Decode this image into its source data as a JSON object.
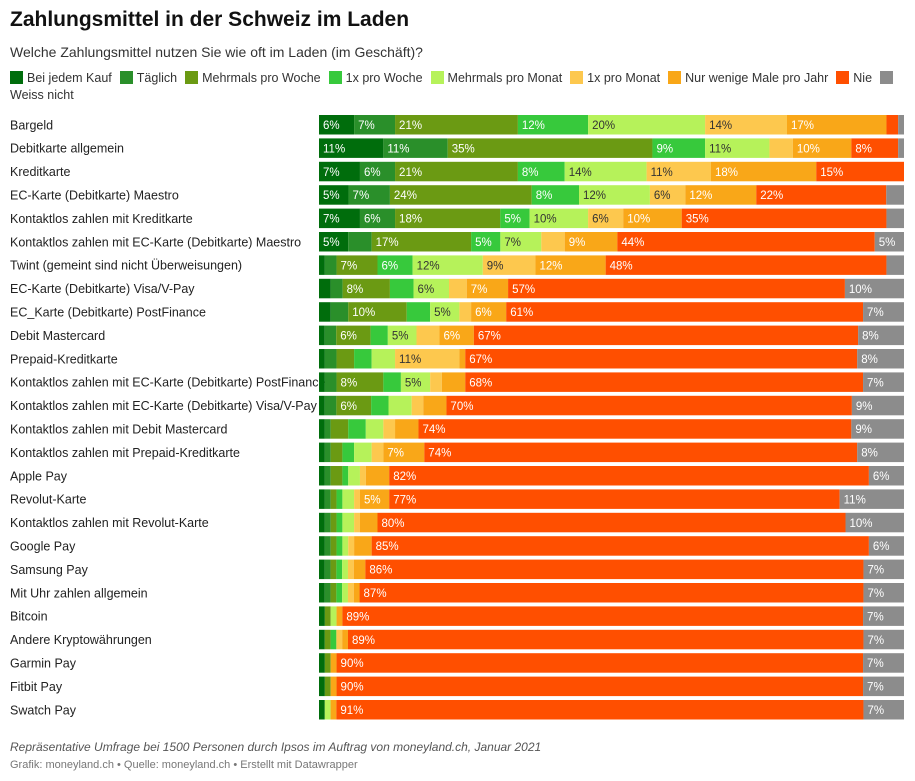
{
  "title": "Zahlungsmittel in der Schweiz im Laden",
  "subtitle": "Welche Zahlungsmittel nutzen Sie wie oft im Laden (im Geschäft)?",
  "notes": "Repräsentative Umfrage bei 1500 Personen durch Ipsos im Auftrag von moneyland.ch, Januar 2021",
  "footer": "Grafik: moneyland.ch • Quelle: moneyland.ch • Erstellt mit Datawrapper",
  "chart_data": {
    "type": "bar",
    "orientation": "horizontal",
    "stacked": true,
    "normalized_percent": true,
    "legend_position": "top",
    "series": [
      {
        "name": "Bei jedem Kauf",
        "color": "#006d0c"
      },
      {
        "name": "Täglich",
        "color": "#2a8f2a"
      },
      {
        "name": "Mehrmals pro Woche",
        "color": "#6b9a13"
      },
      {
        "name": "1x pro Woche",
        "color": "#37c93c"
      },
      {
        "name": "Mehrmals pro Monat",
        "color": "#b6f25a"
      },
      {
        "name": "1x pro Monat",
        "color": "#fdc84e"
      },
      {
        "name": "Nur wenige Male pro Jahr",
        "color": "#f9a718"
      },
      {
        "name": "Nie",
        "color": "#ff4f00"
      },
      {
        "name": "Weiss nicht",
        "color": "#8c8c8c"
      }
    ],
    "categories": [
      "Bargeld",
      "Debitkarte allgemein",
      "Kreditkarte",
      "EC-Karte (Debitkarte) Maestro",
      "Kontaktlos zahlen mit Kreditkarte",
      "Kontaktlos zahlen mit EC-Karte (Debitkarte) Maestro",
      "Twint (gemeint sind nicht Überweisungen)",
      "EC-Karte (Debitkarte) Visa/V-Pay",
      "EC_Karte (Debitkarte) PostFinance",
      "Debit Mastercard",
      "Prepaid-Kreditkarte",
      "Kontaktlos zahlen mit EC-Karte (Debitkarte) PostFinance",
      "Kontaktlos zahlen mit EC-Karte (Debitkarte) Visa/V-Pay",
      "Kontaktlos zahlen mit Debit Mastercard",
      "Kontaktlos zahlen mit Prepaid-Kreditkarte",
      "Apple Pay",
      "Revolut-Karte",
      "Kontaktlos zahlen mit Revolut-Karte",
      "Google Pay",
      "Samsung Pay",
      "Mit Uhr zahlen allgemein",
      "Bitcoin",
      "Andere Kryptowährungen",
      "Garmin Pay",
      "Fitbit Pay",
      "Swatch Pay"
    ],
    "values": [
      [
        6,
        7,
        21,
        12,
        20,
        14,
        17,
        2,
        1
      ],
      [
        11,
        11,
        35,
        9,
        11,
        4,
        10,
        8,
        1
      ],
      [
        7,
        6,
        21,
        8,
        14,
        11,
        18,
        15,
        0
      ],
      [
        5,
        7,
        24,
        8,
        12,
        6,
        12,
        22,
        3
      ],
      [
        7,
        6,
        18,
        5,
        10,
        6,
        10,
        35,
        3
      ],
      [
        5,
        4,
        17,
        5,
        7,
        4,
        9,
        44,
        5
      ],
      [
        1,
        2,
        7,
        6,
        12,
        9,
        12,
        48,
        3
      ],
      [
        2,
        2,
        8,
        4,
        6,
        3,
        7,
        57,
        10
      ],
      [
        2,
        3,
        10,
        4,
        5,
        2,
        6,
        61,
        7
      ],
      [
        1,
        2,
        6,
        3,
        5,
        4,
        6,
        67,
        8
      ],
      [
        1,
        2,
        3,
        3,
        4,
        11,
        1,
        67,
        8
      ],
      [
        1,
        2,
        8,
        3,
        5,
        2,
        4,
        68,
        7
      ],
      [
        1,
        2,
        6,
        3,
        4,
        2,
        4,
        70,
        9
      ],
      [
        1,
        1,
        3,
        3,
        3,
        2,
        4,
        74,
        9
      ],
      [
        1,
        1,
        2,
        2,
        3,
        2,
        7,
        74,
        8
      ],
      [
        1,
        1,
        2,
        1,
        2,
        1,
        4,
        82,
        6
      ],
      [
        1,
        1,
        1,
        1,
        2,
        1,
        5,
        77,
        11
      ],
      [
        1,
        1,
        1,
        1,
        2,
        1,
        3,
        80,
        10
      ],
      [
        1,
        1,
        1,
        1,
        1,
        1,
        3,
        85,
        6
      ],
      [
        1,
        1,
        1,
        1,
        1,
        1,
        2,
        86,
        7
      ],
      [
        1,
        1,
        1,
        1,
        1,
        1,
        1,
        87,
        7
      ],
      [
        1,
        0,
        1,
        0,
        1,
        0,
        1,
        89,
        7
      ],
      [
        1,
        0,
        1,
        1,
        0,
        1,
        1,
        89,
        7
      ],
      [
        1,
        0,
        1,
        0,
        0,
        0,
        1,
        90,
        7
      ],
      [
        1,
        0,
        1,
        0,
        0,
        0,
        1,
        90,
        7
      ],
      [
        1,
        0,
        0,
        0,
        1,
        0,
        1,
        91,
        7
      ]
    ],
    "xlim": [
      0,
      100
    ],
    "label_threshold_percent": 5,
    "unit_suffix": "%"
  }
}
